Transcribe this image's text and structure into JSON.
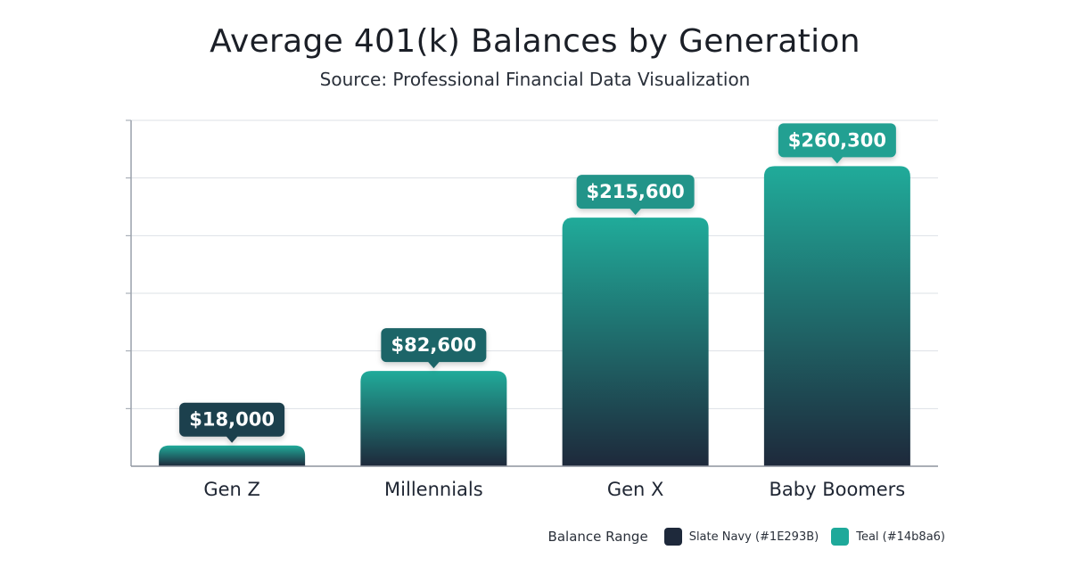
{
  "chart_data": {
    "type": "bar",
    "title": "Average 401(k) Balances by Generation",
    "subtitle": "Source: Professional Financial Data Visualization",
    "categories": [
      "Gen Z",
      "Millennials",
      "Gen X",
      "Baby Boomers"
    ],
    "values": [
      18000,
      82600,
      215600,
      260300
    ],
    "value_labels": [
      "$18,000",
      "$82,600",
      "$215,600",
      "$260,300"
    ],
    "xlabel": "",
    "ylabel": "",
    "ylim": [
      0,
      300000
    ],
    "grid": true,
    "gradient": {
      "top": "#20ab9a",
      "bottom": "#1e293b"
    },
    "legend": {
      "title": "Balance Range",
      "position": "bottom-right",
      "items": [
        {
          "label": "Slate Navy (#1E293B)",
          "color": "#1e293b"
        },
        {
          "label": "Teal (#14b8a6)",
          "color": "#1ea99a"
        }
      ]
    }
  }
}
